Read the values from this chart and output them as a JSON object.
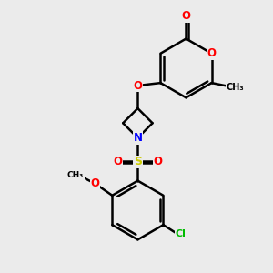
{
  "background_color": "#ebebeb",
  "atom_colors": {
    "O": "#ff0000",
    "N": "#0000ff",
    "S": "#cccc00",
    "Cl": "#00bb00",
    "C": "#000000"
  },
  "bond_color": "#000000",
  "bond_width": 1.8,
  "font_size_atom": 8.5,
  "background_rgb": [
    0.92,
    0.92,
    0.92
  ]
}
